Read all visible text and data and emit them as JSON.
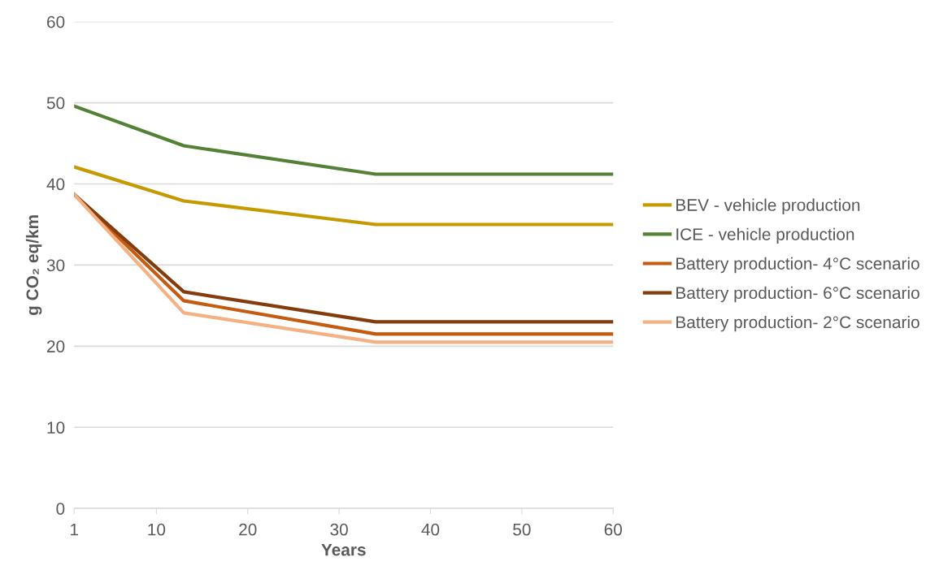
{
  "chart_data": {
    "type": "line",
    "xlabel": "Years",
    "ylabel": "g CO₂ eq/km",
    "x": [
      1,
      13,
      34,
      60
    ],
    "series": [
      {
        "name": "BEV - vehicle production",
        "color": "#c49a00",
        "values": [
          42.1,
          37.9,
          35.0,
          35.0
        ]
      },
      {
        "name": "ICE - vehicle production",
        "color": "#538135",
        "values": [
          49.6,
          44.7,
          41.2,
          41.2
        ]
      },
      {
        "name": "Battery production- 4°C scenario",
        "color": "#c55a11",
        "values": [
          38.7,
          25.6,
          21.5,
          21.5
        ]
      },
      {
        "name": "Battery production- 6°C scenario",
        "color": "#843c0c",
        "values": [
          38.7,
          26.7,
          23.0,
          23.0
        ]
      },
      {
        "name": "Battery production- 2°C scenario",
        "color": "#f4b183",
        "values": [
          38.7,
          24.1,
          20.5,
          20.5
        ]
      }
    ],
    "xlim": [
      1,
      60
    ],
    "xticks": [
      1,
      10,
      20,
      30,
      40,
      50,
      60
    ],
    "ylim": [
      0,
      60
    ],
    "yticks": [
      0,
      10,
      20,
      30,
      40,
      50,
      60
    ],
    "grid": "y",
    "legend": "right",
    "marker": "none",
    "line_style": "solid"
  }
}
